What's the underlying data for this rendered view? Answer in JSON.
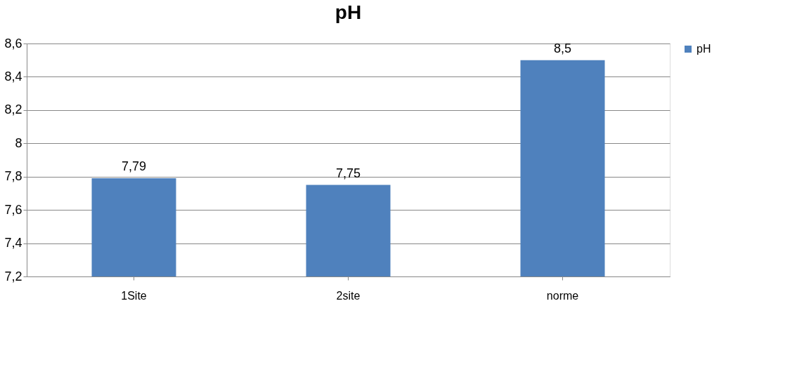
{
  "chart_data": {
    "type": "bar",
    "title": "pH",
    "categories": [
      "1Site",
      "2site",
      "norme"
    ],
    "series": [
      {
        "name": "pH",
        "color": "#4f81bd",
        "values": [
          7.79,
          7.75,
          8.5
        ],
        "value_labels": [
          "7,79",
          "7,75",
          "8,5"
        ]
      }
    ],
    "ylim": [
      7.2,
      8.6
    ],
    "yticks": [
      {
        "value": 7.2,
        "label": "7,2"
      },
      {
        "value": 7.4,
        "label": "7,4"
      },
      {
        "value": 7.6,
        "label": "7,6"
      },
      {
        "value": 7.8,
        "label": "7,8"
      },
      8,
      {
        "value": 8.2,
        "label": "8,2"
      },
      {
        "value": 8.4,
        "label": "8,4"
      },
      {
        "value": 8.6,
        "label": "8,6"
      }
    ],
    "grid": "y",
    "legend": "right"
  }
}
